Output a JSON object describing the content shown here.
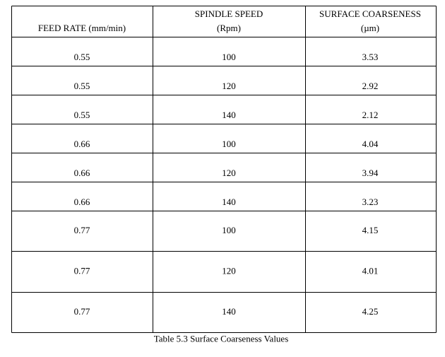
{
  "table": {
    "header": [
      [
        "FEED RATE (mm/min)"
      ],
      [
        "SPINDLE SPEED",
        "(Rpm)"
      ],
      [
        "SURFACE COARSENESS",
        "(µm)"
      ]
    ],
    "rows": [
      [
        "0.55",
        "100",
        "3.53"
      ],
      [
        "0.55",
        "120",
        "2.92"
      ],
      [
        "0.55",
        "140",
        "2.12"
      ],
      [
        "0.66",
        "100",
        "4.04"
      ],
      [
        "0.66",
        "120",
        "3.94"
      ],
      [
        "0.66",
        "140",
        "3.23"
      ],
      [
        "0.77",
        "100",
        "4.15"
      ],
      [
        "0.77",
        "120",
        "4.01"
      ],
      [
        "0.77",
        "140",
        "4.25"
      ]
    ],
    "caption": "Table 5.3 Surface Coarseness Values"
  }
}
